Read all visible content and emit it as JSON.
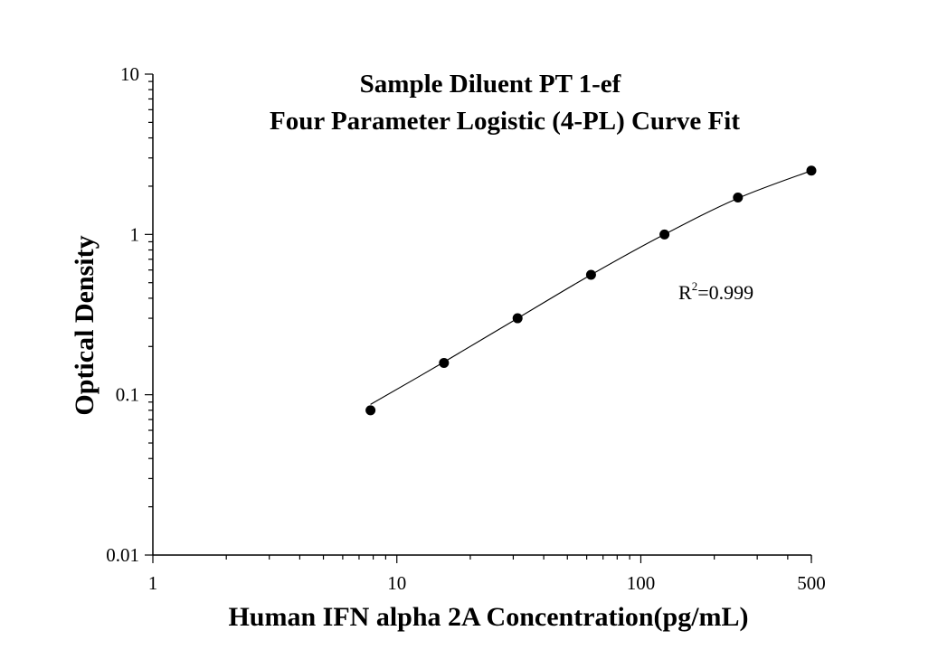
{
  "chart_data": {
    "type": "scatter",
    "title_line1": "Sample Diluent PT 1-ef",
    "title_line2": "Four Parameter Logistic (4-PL) Curve Fit",
    "xlabel": "Human IFN alpha 2A Concentration(pg/mL)",
    "ylabel": "Optical Density",
    "x_scale": "log",
    "y_scale": "log",
    "xlim": [
      1,
      500
    ],
    "ylim": [
      0.01,
      10
    ],
    "x_ticks": [
      {
        "value": 1,
        "label": "1"
      },
      {
        "value": 10,
        "label": "10"
      },
      {
        "value": 100,
        "label": "100"
      },
      {
        "value": 500,
        "label": "500"
      }
    ],
    "y_ticks": [
      {
        "value": 0.01,
        "label": "0.01"
      },
      {
        "value": 0.1,
        "label": "0.1"
      },
      {
        "value": 1,
        "label": "1"
      },
      {
        "value": 10,
        "label": "10"
      }
    ],
    "points": [
      {
        "x": 7.8,
        "y": 0.08
      },
      {
        "x": 15.6,
        "y": 0.158
      },
      {
        "x": 31.25,
        "y": 0.3
      },
      {
        "x": 62.5,
        "y": 0.56
      },
      {
        "x": 125,
        "y": 1.0
      },
      {
        "x": 250,
        "y": 1.7
      },
      {
        "x": 500,
        "y": 2.5
      }
    ],
    "fit_curve": [
      {
        "x": 7.8,
        "y": 0.087
      },
      {
        "x": 15.6,
        "y": 0.16
      },
      {
        "x": 31.25,
        "y": 0.3
      },
      {
        "x": 62.5,
        "y": 0.56
      },
      {
        "x": 125,
        "y": 1.0
      },
      {
        "x": 250,
        "y": 1.68
      },
      {
        "x": 500,
        "y": 2.5
      }
    ],
    "annotation": {
      "base": "R",
      "sup": "2",
      "value": "=0.999"
    },
    "grid": false,
    "colors": {
      "marker": "#000000",
      "line": "#000000",
      "axis": "#000000"
    }
  }
}
